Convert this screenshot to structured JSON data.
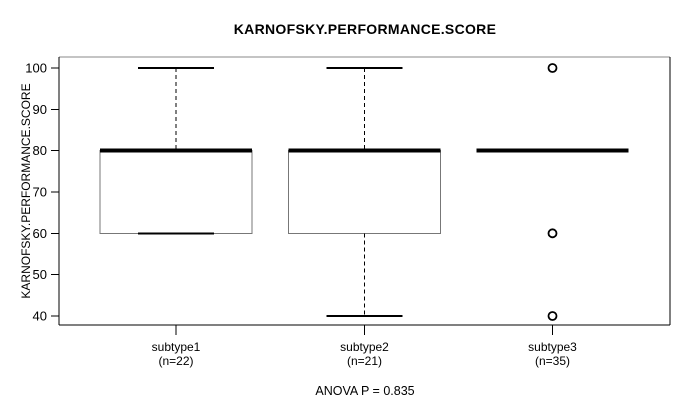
{
  "chart_data": {
    "type": "box",
    "title": "KARNOFSKY.PERFORMANCE.SCORE",
    "ylabel": "KARNOFSKY.PERFORMANCE.SCORE",
    "xlabel": "",
    "annotation": "ANOVA P = 0.835",
    "y_ticks": [
      40,
      50,
      60,
      70,
      80,
      90,
      100
    ],
    "ylim": [
      38,
      103
    ],
    "grid": "off",
    "legend": "none",
    "groups": [
      {
        "label": "subtype1",
        "n_label": "(n=22)",
        "n": 22,
        "q1": 60,
        "median": 80,
        "q3": 80,
        "whisker_low": 60,
        "whisker_high": 100,
        "outliers": []
      },
      {
        "label": "subtype2",
        "n_label": "(n=21)",
        "n": 21,
        "q1": 60,
        "median": 80,
        "q3": 80,
        "whisker_low": 40,
        "whisker_high": 100,
        "outliers": []
      },
      {
        "label": "subtype3",
        "n_label": "(n=35)",
        "n": 35,
        "q1": 80,
        "median": 80,
        "q3": 80,
        "whisker_low": 80,
        "whisker_high": 80,
        "outliers": [
          100,
          60,
          40
        ]
      }
    ],
    "colors": {
      "line": "#000000",
      "box_edge": "#777777",
      "border_top": "#888888",
      "background": "#ffffff"
    }
  }
}
